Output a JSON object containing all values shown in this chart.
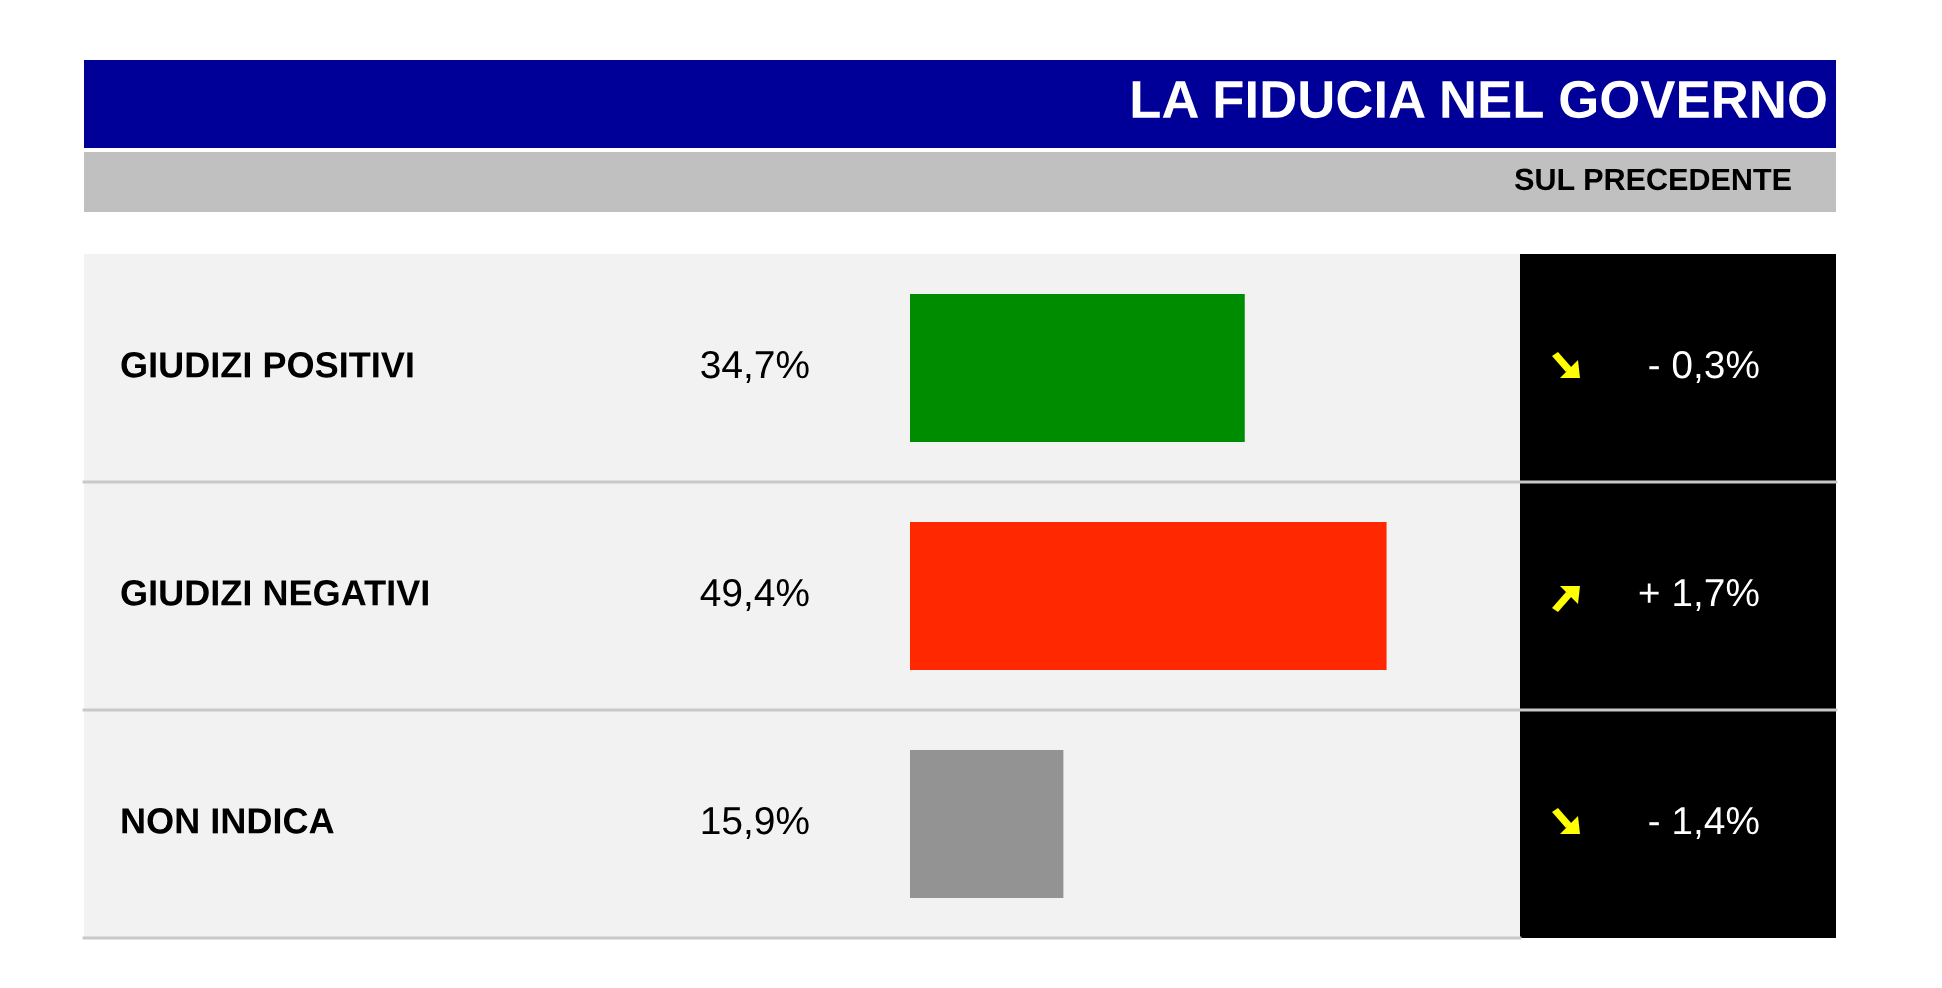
{
  "chart_data": {
    "type": "bar",
    "orientation": "horizontal",
    "title": "LA FIDUCIA NEL GOVERNO",
    "subtitle": "SUL PRECEDENTE",
    "categories": [
      "GIUDIZI POSITIVI",
      "GIUDIZI NEGATIVI",
      "NON INDICA"
    ],
    "values": [
      34.7,
      49.4,
      15.9
    ],
    "colors": [
      "#008c00",
      "#ff2800",
      "#939393"
    ],
    "value_labels": [
      "34,7%",
      "49,4%",
      "15,9%"
    ],
    "annotations": [
      "- 0,3%",
      "+ 1,7%",
      "- 1,4%"
    ]
  }
}
